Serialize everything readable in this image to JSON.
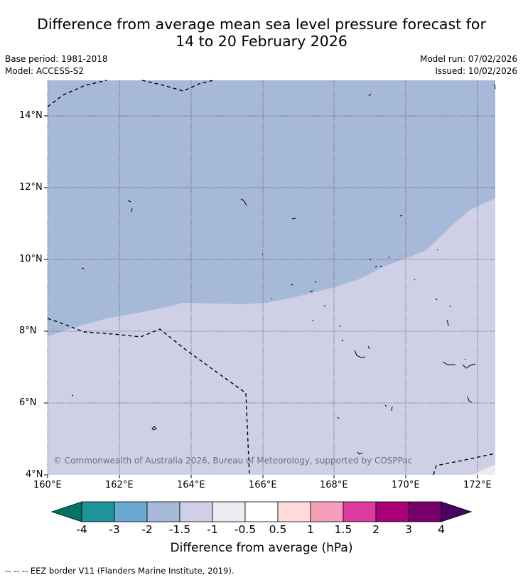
{
  "title_line1": "Difference from average mean sea level pressure forecast for",
  "title_line2": "14 to 20 February 2026",
  "base_period": "Base period: 1981-2018",
  "model": "Model: ACCESS-S2",
  "model_run": "Model run: 07/02/2026",
  "issued": "Issued: 10/02/2026",
  "copyright": "© Commonwealth of Australia 2026, Bureau of Meteorology, supported by COSPPac",
  "footer": "--  --  -- EEZ border V11 (Flanders Marine Institute, 2019).",
  "map": {
    "lon_range": [
      160,
      172.5
    ],
    "lat_range": [
      4,
      15
    ],
    "lon_ticks": [
      "160°E",
      "162°E",
      "164°E",
      "166°E",
      "168°E",
      "170°E",
      "172°E"
    ],
    "lat_ticks": [
      "4°N",
      "6°N",
      "8°N",
      "10°N",
      "12°N",
      "14°N"
    ],
    "grid": "dotted",
    "region_colors": {
      "minus_1_5_to_minus_1": "#a6b9d9",
      "minus_1_to_minus_0_5": "#cfd0e6",
      "minus_0_5_to_0": "#eeeaf2"
    }
  },
  "colorbar": {
    "title": "Difference from average (hPa)",
    "tick_labels": [
      "-4",
      "-3",
      "-2",
      "-1.5",
      "-1",
      "-0.5",
      "0.5",
      "1",
      "1.5",
      "2",
      "3",
      "4"
    ],
    "colors": [
      "#007266",
      "#1e949a",
      "#69a9d2",
      "#a6b9d9",
      "#cfd0e6",
      "#eeeaf2",
      "#ffffff",
      "#ffdcdc",
      "#f79eb9",
      "#dc3c9f",
      "#aa0078",
      "#78006e",
      "#4b0064"
    ]
  }
}
